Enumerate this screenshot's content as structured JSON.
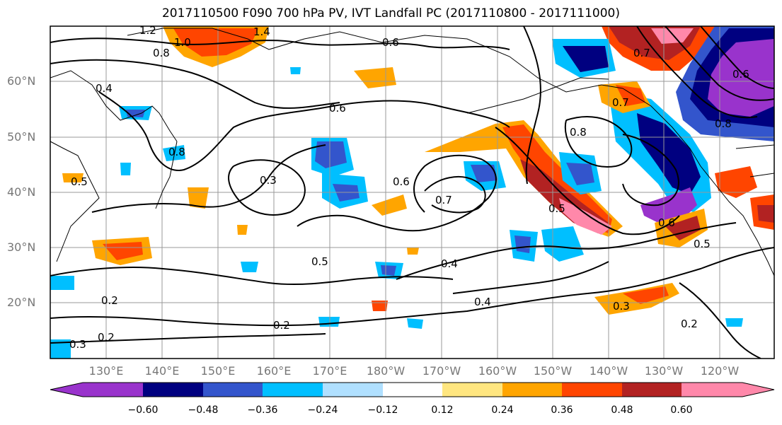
{
  "title": "2017110500 F090 700 hPa PV, IVT Landfall PC (2017110800 - 2017111000)",
  "lat_labels": [
    "60°N",
    "50°N",
    "40°N",
    "30°N",
    "20°N"
  ],
  "lon_labels": [
    "130°E",
    "140°E",
    "150°E",
    "160°E",
    "170°E",
    "180°W",
    "170°W",
    "160°W",
    "150°W",
    "140°W",
    "130°W",
    "120°W"
  ],
  "colorbar": {
    "ticks": [
      "−0.60",
      "−0.48",
      "−0.36",
      "−0.24",
      "−0.12",
      "0.12",
      "0.24",
      "0.36",
      "0.48",
      "0.60"
    ],
    "colors": [
      "#9933cc",
      "#000080",
      "#3355cc",
      "#00bfff",
      "#b0e0ff",
      "#ffffff",
      "#ffe680",
      "#ffa500",
      "#ff4500",
      "#b22222",
      "#ff88aa"
    ]
  },
  "contour_labels": [
    "1.2",
    "1.0",
    "1.4",
    "0.8",
    "0.6",
    "0.4",
    "0.6",
    "0.8",
    "0.5",
    "0.3",
    "0.6",
    "0.7",
    "0.5",
    "0.8",
    "0.7",
    "0.5",
    "0.4",
    "0.2",
    "0.2",
    "0.3",
    "0.2",
    "0.4",
    "0.3",
    "0.6",
    "0.5",
    "0.2",
    "0.7",
    "0.8",
    "0.6"
  ]
}
